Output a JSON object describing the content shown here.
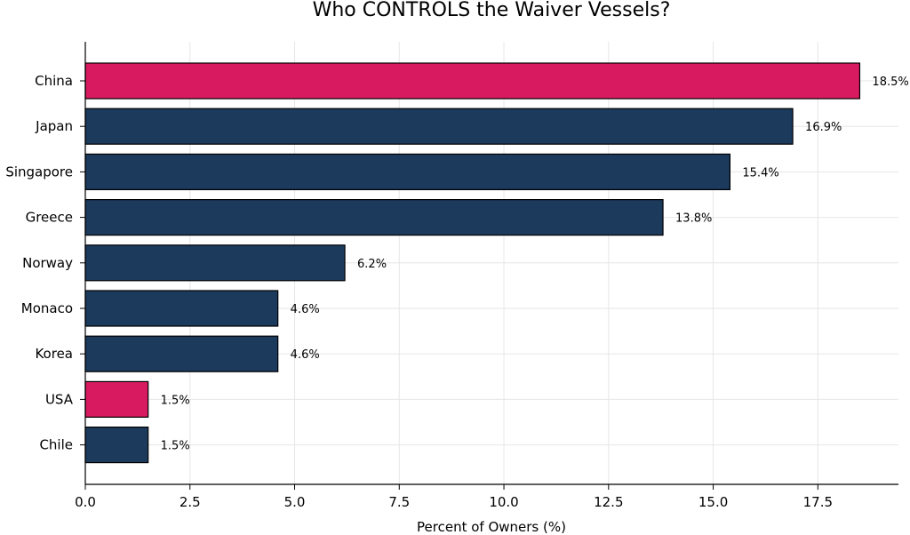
{
  "chart_data": {
    "type": "bar",
    "orientation": "horizontal",
    "title": "Who CONTROLS the Waiver Vessels?",
    "xlabel": "Percent of Owners (%)",
    "ylabel": "",
    "categories": [
      "China",
      "Japan",
      "Singapore",
      "Greece",
      "Norway",
      "Monaco",
      "Korea",
      "USA",
      "Chile"
    ],
    "values": [
      18.5,
      16.9,
      15.4,
      13.8,
      6.2,
      4.6,
      4.6,
      1.5,
      1.5
    ],
    "value_labels": [
      "18.5%",
      "16.9%",
      "15.4%",
      "13.8%",
      "6.2%",
      "4.6%",
      "4.6%",
      "1.5%",
      "1.5%"
    ],
    "highlight": [
      true,
      false,
      false,
      false,
      false,
      false,
      false,
      true,
      false
    ],
    "xlim": [
      0,
      19.425
    ],
    "xticks": [
      0.0,
      2.5,
      5.0,
      7.5,
      10.0,
      12.5,
      15.0,
      17.5
    ],
    "xtick_labels": [
      "0.0",
      "2.5",
      "5.0",
      "7.5",
      "10.0",
      "12.5",
      "15.0",
      "17.5"
    ],
    "grid": true,
    "colors": {
      "highlight": "#d81b60",
      "default": "#1b3a5c",
      "edge": "#000000",
      "grid": "#e6e6e6"
    }
  }
}
